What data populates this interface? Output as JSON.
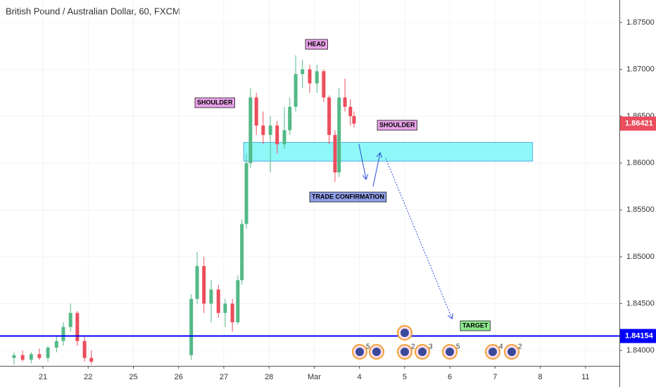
{
  "chart_data": {
    "type": "candlestick",
    "title": "British Pound / Australian Dollar, 60, FXCM",
    "up_color": "#53b987",
    "down_color": "#eb4d5c",
    "x": [
      -0.64,
      -0.45,
      -0.26,
      -0.08,
      0.11,
      0.3,
      0.45,
      0.61,
      0.76,
      0.92,
      1.07,
      3.28,
      3.41,
      3.56,
      3.72,
      3.88,
      4.03,
      4.19,
      4.31,
      4.4,
      4.5,
      4.59,
      4.72,
      4.87,
      5.03,
      5.18,
      5.34,
      5.46,
      5.59,
      5.74,
      5.9,
      6.06,
      6.21,
      6.33,
      6.46,
      6.55,
      6.68,
      6.8,
      6.88
    ],
    "open": [
      1.8392,
      1.8395,
      1.839,
      1.8396,
      1.8392,
      1.8403,
      1.841,
      1.8425,
      1.844,
      1.841,
      1.8392,
      1.8395,
      1.8455,
      1.849,
      1.845,
      1.8465,
      1.844,
      1.845,
      1.843,
      1.8475,
      1.8535,
      1.86,
      1.867,
      1.864,
      1.863,
      1.864,
      1.862,
      1.8635,
      1.866,
      1.8695,
      1.87,
      1.8685,
      1.8698,
      1.867,
      1.863,
      1.859,
      1.867,
      1.866,
      1.865
    ],
    "high": [
      1.8398,
      1.84,
      1.8398,
      1.8402,
      1.8405,
      1.8415,
      1.843,
      1.845,
      1.8442,
      1.8415,
      1.84,
      1.846,
      1.8505,
      1.85,
      1.8475,
      1.847,
      1.8455,
      1.8455,
      1.848,
      1.854,
      1.861,
      1.868,
      1.8675,
      1.8655,
      1.865,
      1.8645,
      1.866,
      1.867,
      1.8715,
      1.871,
      1.8705,
      1.8705,
      1.87,
      1.8672,
      1.8635,
      1.868,
      1.869,
      1.8668,
      1.8655
    ],
    "low": [
      1.8385,
      1.8388,
      1.8386,
      1.839,
      1.8388,
      1.8398,
      1.8405,
      1.842,
      1.8405,
      1.8388,
      1.8385,
      1.839,
      1.845,
      1.844,
      1.843,
      1.8435,
      1.8425,
      1.842,
      1.8428,
      1.847,
      1.853,
      1.8595,
      1.863,
      1.862,
      1.859,
      1.861,
      1.8615,
      1.863,
      1.8655,
      1.868,
      1.8675,
      1.8675,
      1.8665,
      1.862,
      1.858,
      1.8585,
      1.8655,
      1.864,
      1.8638
    ],
    "close": [
      1.8395,
      1.839,
      1.8396,
      1.8392,
      1.8403,
      1.841,
      1.8425,
      1.844,
      1.841,
      1.8392,
      1.8388,
      1.8455,
      1.849,
      1.845,
      1.8465,
      1.844,
      1.845,
      1.843,
      1.8475,
      1.8535,
      1.86,
      1.867,
      1.864,
      1.863,
      1.864,
      1.862,
      1.8635,
      1.866,
      1.8695,
      1.87,
      1.8685,
      1.8698,
      1.867,
      1.863,
      1.859,
      1.867,
      1.866,
      1.865,
      1.86421
    ],
    "xlim": [
      -0.95,
      12.75
    ],
    "xticks": [
      {
        "value": 0,
        "label": "21"
      },
      {
        "value": 1,
        "label": "22"
      },
      {
        "value": 2,
        "label": "25"
      },
      {
        "value": 3,
        "label": "26"
      },
      {
        "value": 4,
        "label": "27"
      },
      {
        "value": 5,
        "label": "28"
      },
      {
        "value": 6,
        "label": "Mar"
      },
      {
        "value": 7,
        "label": "4"
      },
      {
        "value": 8,
        "label": "5"
      },
      {
        "value": 9,
        "label": "6"
      },
      {
        "value": 10,
        "label": "7"
      },
      {
        "value": 11,
        "label": "8"
      },
      {
        "value": 12,
        "label": "11"
      }
    ],
    "ylim": [
      1.83835,
      1.8774
    ],
    "yticks": [
      {
        "value": 1.84,
        "label": "1.84000"
      },
      {
        "value": 1.845,
        "label": "1.84500"
      },
      {
        "value": 1.85,
        "label": "1.85000"
      },
      {
        "value": 1.855,
        "label": "1.85500"
      },
      {
        "value": 1.86,
        "label": "1.86000"
      },
      {
        "value": 1.865,
        "label": "1.86500"
      },
      {
        "value": 1.87,
        "label": "1.87000"
      },
      {
        "value": 1.875,
        "label": "1.87500"
      }
    ],
    "hline": {
      "value": 1.84154,
      "color": "#0000ff"
    },
    "last_price": 1.86421,
    "zone": {
      "x": [
        4.44,
        10.83
      ],
      "y": [
        1.8602,
        1.8622
      ],
      "color": "#8ef8f8"
    },
    "annotations": [
      "SHOULDER",
      "HEAD",
      "SHOULDER",
      "TRADE CONFIRMATION",
      "TARGET"
    ],
    "event_counts": [
      "5",
      "2",
      "3",
      "5",
      "4",
      "2"
    ]
  }
}
